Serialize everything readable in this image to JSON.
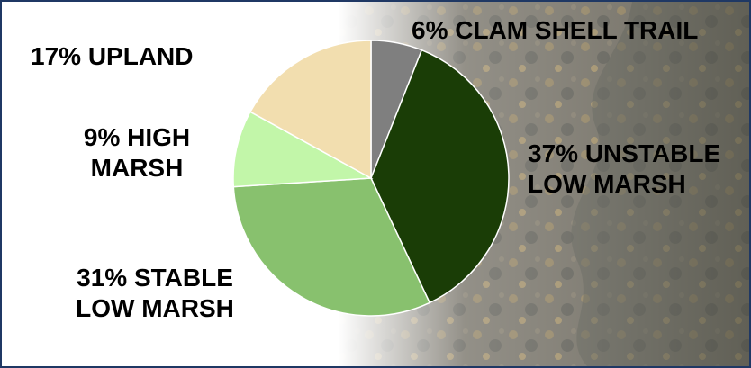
{
  "chart_data": {
    "type": "pie",
    "title": "",
    "start_angle_deg": 0,
    "direction": "clockwise",
    "slices": [
      {
        "label": "6% CLAM SHELL TRAIL",
        "lines": [
          "6% CLAM SHELL TRAIL"
        ],
        "value": 6,
        "color": "#7f7f7f"
      },
      {
        "label": "37% UNSTABLE LOW MARSH",
        "lines": [
          "37% UNSTABLE",
          "LOW MARSH"
        ],
        "value": 37,
        "color": "#1a3d06"
      },
      {
        "label": "31% STABLE LOW MARSH",
        "lines": [
          "31% STABLE",
          "LOW MARSH"
        ],
        "value": 31,
        "color": "#88c16e"
      },
      {
        "label": "9% HIGH MARSH",
        "lines": [
          "9% HIGH",
          "MARSH"
        ],
        "value": 9,
        "color": "#c2f6a9"
      },
      {
        "label": "17% UPLAND",
        "lines": [
          "17% UPLAND"
        ],
        "value": 17,
        "color": "#f2deaf"
      }
    ],
    "legend": "none",
    "labels_outside": true
  },
  "colors": {
    "frame_border": "#1f3864",
    "background_photo_tint": "#6f6b60"
  }
}
